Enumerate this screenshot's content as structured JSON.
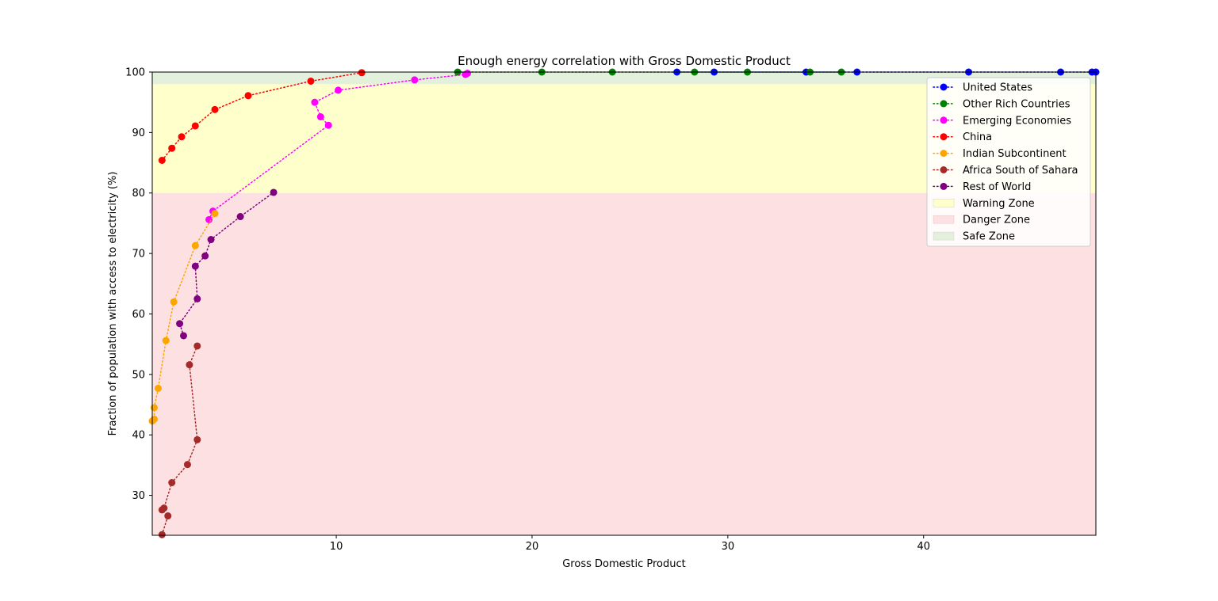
{
  "chart_data": {
    "type": "line",
    "title": "Enough energy correlation with Gross Domestic Product",
    "xlabel": "Gross Domestic Product",
    "ylabel": "Fraction of population with access to electricity (%)",
    "xlim": [
      0.6,
      48.8
    ],
    "ylim": [
      23.4,
      100
    ],
    "xticks": [
      10,
      20,
      30,
      40
    ],
    "yticks": [
      30,
      40,
      50,
      60,
      70,
      80,
      90,
      100
    ],
    "grid": false,
    "legend_position": "top-right",
    "zones": [
      {
        "name": "Warning Zone",
        "y0": 80,
        "y1": 98,
        "color": "#ffffcc"
      },
      {
        "name": "Danger Zone",
        "y0": 23.4,
        "y1": 80,
        "color": "#fde0e1"
      },
      {
        "name": "Safe Zone",
        "y0": 98,
        "y1": 100,
        "color": "#e3f0dc"
      }
    ],
    "series": [
      {
        "name": "United States",
        "color": "#0000ff",
        "points": [
          [
            27.4,
            100
          ],
          [
            29.3,
            100
          ],
          [
            34.0,
            100
          ],
          [
            36.6,
            100
          ],
          [
            42.3,
            100
          ],
          [
            47.0,
            100
          ],
          [
            48.6,
            100
          ],
          [
            48.8,
            100
          ]
        ]
      },
      {
        "name": "Other Rich Countries",
        "color": "#008000",
        "points": [
          [
            16.2,
            100
          ],
          [
            20.5,
            100
          ],
          [
            24.1,
            100
          ],
          [
            28.3,
            100
          ],
          [
            31.0,
            100
          ],
          [
            34.2,
            100
          ],
          [
            35.8,
            100
          ]
        ]
      },
      {
        "name": "Emerging Economies",
        "color": "#ff00ff",
        "points": [
          [
            3.5,
            75.6
          ],
          [
            3.7,
            77.0
          ],
          [
            9.6,
            91.2
          ],
          [
            9.2,
            92.6
          ],
          [
            8.9,
            95.0
          ],
          [
            10.1,
            97.0
          ],
          [
            14.0,
            98.7
          ],
          [
            16.6,
            99.6
          ],
          [
            16.7,
            99.8
          ]
        ]
      },
      {
        "name": "China",
        "color": "#ff0000",
        "points": [
          [
            1.1,
            85.4
          ],
          [
            1.6,
            87.4
          ],
          [
            2.1,
            89.3
          ],
          [
            2.8,
            91.1
          ],
          [
            3.8,
            93.8
          ],
          [
            5.5,
            96.1
          ],
          [
            8.7,
            98.5
          ],
          [
            11.3,
            99.9
          ]
        ]
      },
      {
        "name": "Indian Subcontinent",
        "color": "#ffa500",
        "points": [
          [
            0.6,
            42.3
          ],
          [
            0.7,
            42.6
          ],
          [
            0.7,
            44.5
          ],
          [
            0.9,
            47.7
          ],
          [
            1.3,
            55.6
          ],
          [
            1.7,
            62.0
          ],
          [
            2.8,
            71.3
          ],
          [
            3.8,
            76.6
          ]
        ]
      },
      {
        "name": "Africa South of Sahara",
        "color": "#a52a2a",
        "points": [
          [
            1.1,
            23.5
          ],
          [
            1.4,
            26.6
          ],
          [
            1.1,
            27.6
          ],
          [
            1.2,
            27.9
          ],
          [
            1.6,
            32.1
          ],
          [
            2.4,
            35.1
          ],
          [
            2.9,
            39.2
          ],
          [
            2.5,
            51.6
          ],
          [
            2.9,
            54.7
          ]
        ]
      },
      {
        "name": "Rest of World",
        "color": "#800080",
        "points": [
          [
            2.2,
            56.4
          ],
          [
            2.0,
            58.4
          ],
          [
            2.9,
            62.5
          ],
          [
            2.8,
            67.9
          ],
          [
            3.3,
            69.6
          ],
          [
            3.6,
            72.3
          ],
          [
            5.1,
            76.1
          ],
          [
            6.8,
            80.1
          ]
        ]
      }
    ]
  }
}
